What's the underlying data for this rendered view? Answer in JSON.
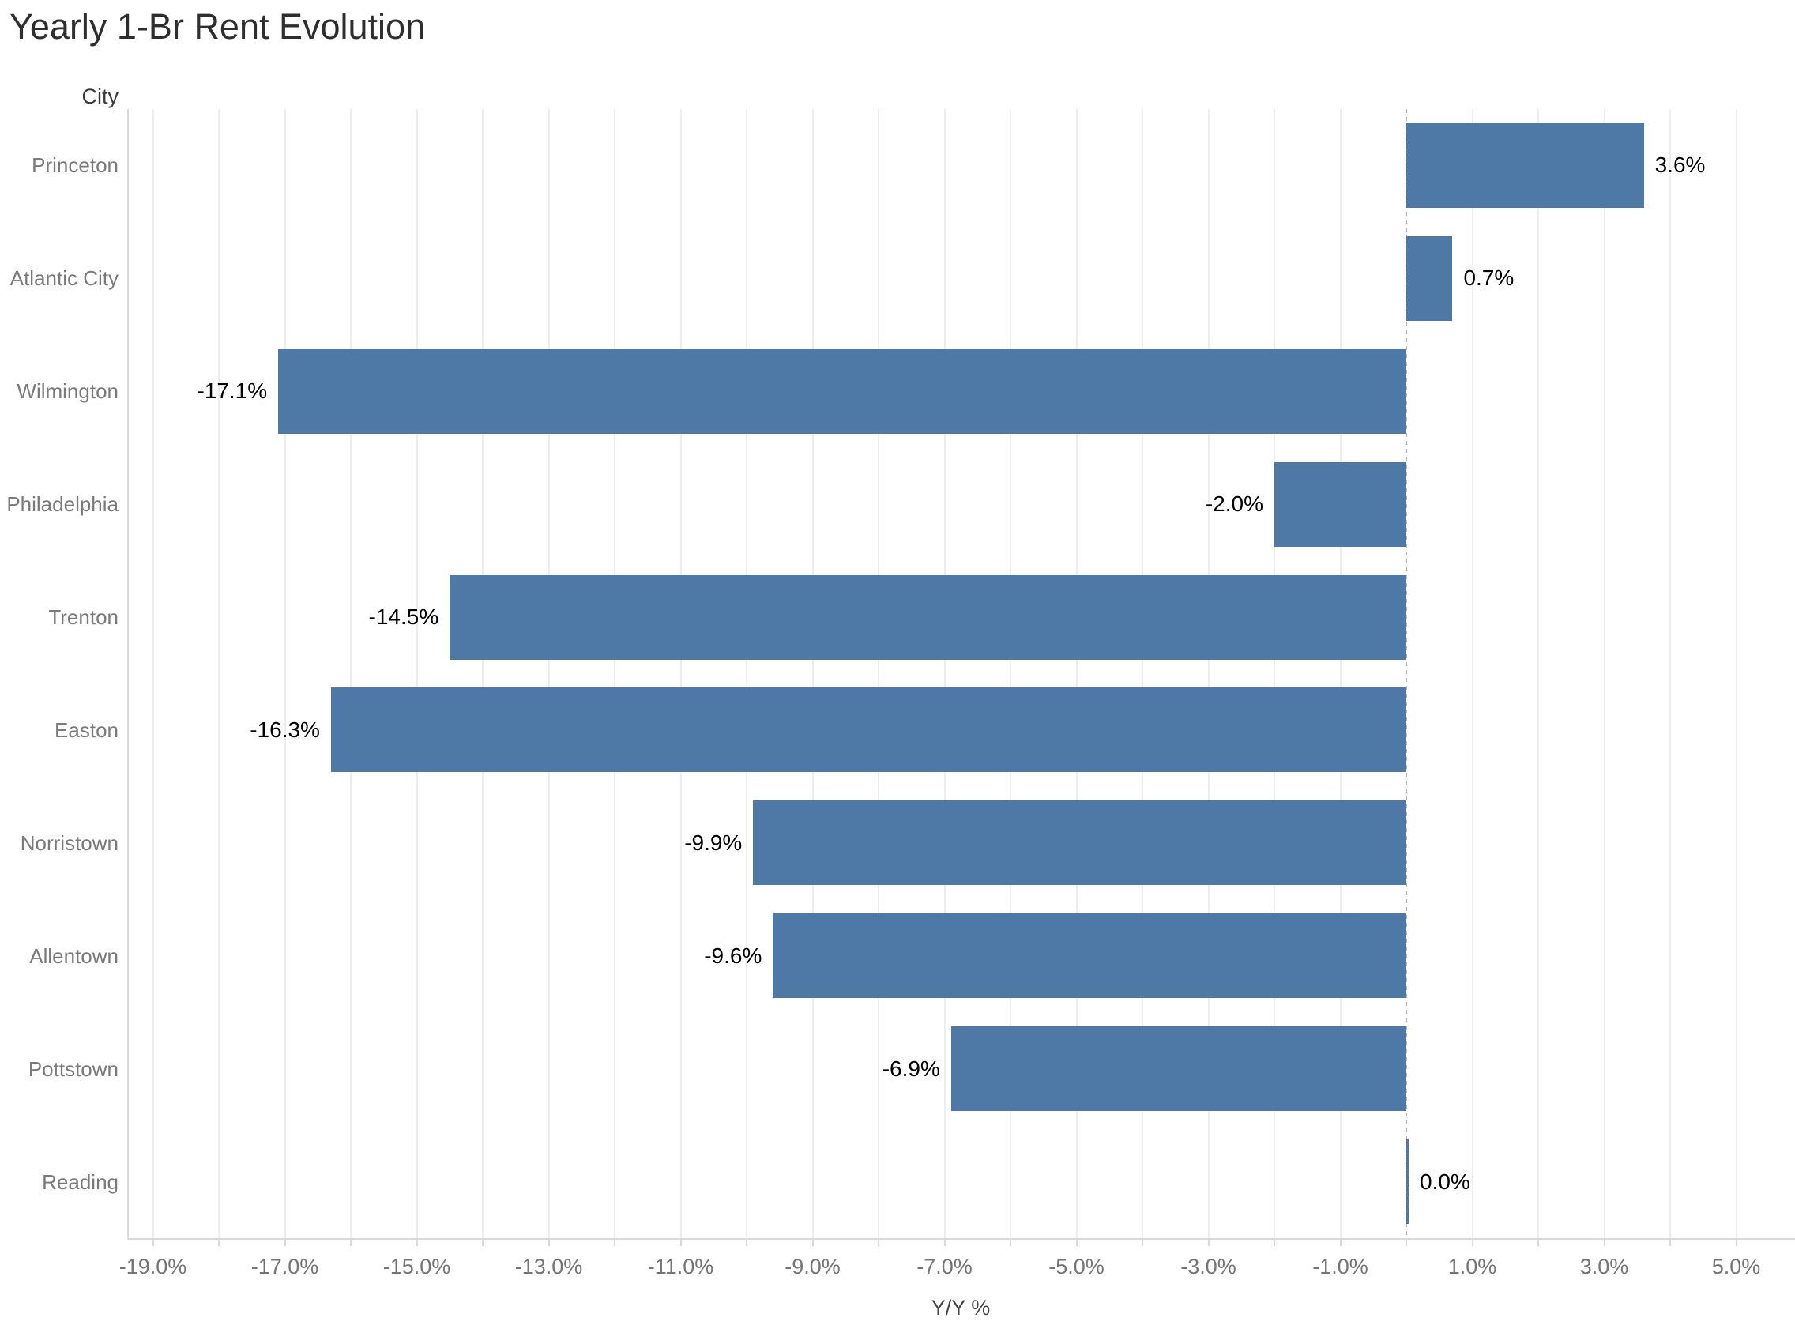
{
  "chart_data": {
    "type": "bar",
    "orientation": "horizontal",
    "title": "Yearly 1-Br Rent Evolution",
    "row_header": "City",
    "xlabel": "Y/Y %",
    "categories": [
      "Princeton",
      "Atlantic City",
      "Wilmington",
      "Philadelphia",
      "Trenton",
      "Easton",
      "Norristown",
      "Allentown",
      "Pottstown",
      "Reading"
    ],
    "values": [
      3.6,
      0.7,
      -17.1,
      -2.0,
      -14.5,
      -16.3,
      -9.9,
      -9.6,
      -6.9,
      0.0
    ],
    "value_labels": [
      "3.6%",
      "0.7%",
      "-17.1%",
      "-2.0%",
      "-14.5%",
      "-16.3%",
      "-9.9%",
      "-9.6%",
      "-6.9%",
      "0.0%"
    ],
    "xlim": [
      -19.4,
      5.9
    ],
    "x_tick_values": [
      -19,
      -17,
      -15,
      -13,
      -11,
      -9,
      -7,
      -5,
      -3,
      -1,
      1,
      3,
      5
    ],
    "x_tick_labels": [
      "-19.0%",
      "-17.0%",
      "-15.0%",
      "-13.0%",
      "-11.0%",
      "-9.0%",
      "-7.0%",
      "-5.0%",
      "-3.0%",
      "-1.0%",
      "1.0%",
      "3.0%",
      "5.0%"
    ],
    "gridline_every_pct": 1,
    "zero_reference_line": true,
    "grid": true,
    "legend": null,
    "bar_color": "#4e79a7"
  },
  "colors": {
    "bar": "#4e79a7",
    "title_text": "#2e2e2e",
    "header_text": "#3a3a3a",
    "category_text": "#7a7a7a",
    "tick_text": "#757575",
    "value_text": "#000000",
    "axis_title_text": "#444444",
    "gridline": "#ededed",
    "axis_line": "#d9d9d9",
    "zero_line": "#b3b3b3",
    "background": "#ffffff"
  }
}
